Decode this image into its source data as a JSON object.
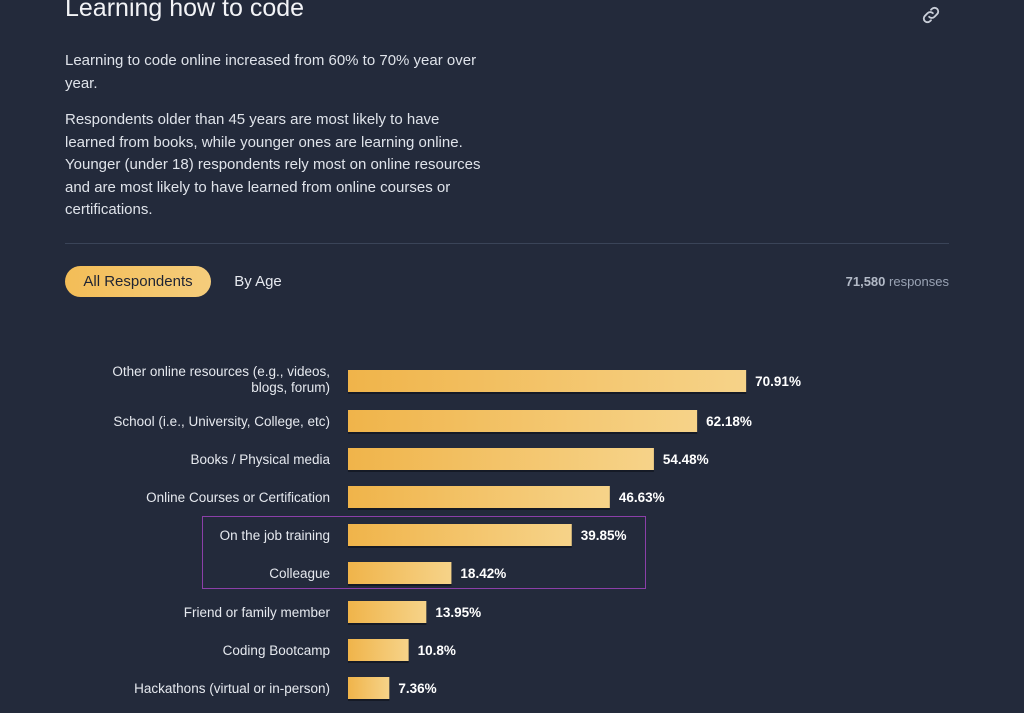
{
  "header": {
    "title": "Learning how to code",
    "link_icon": "link-icon"
  },
  "intro": {
    "paragraph1": "Learning to code online increased from 60% to 70% year over year.",
    "paragraph2": "Respondents older than 45 years are most likely to have learned from books, while younger ones are learning online. Younger (under 18) respondents rely most on online resources and are most likely to have learned from online courses or certifications."
  },
  "tabs": {
    "all_label": "All Respondents",
    "age_label": "By Age",
    "selected": "All Respondents"
  },
  "responses": {
    "count": "71,580",
    "label": "responses"
  },
  "colors": {
    "background": "#232a3b",
    "bar_start": "#f0b44a",
    "bar_end": "#f6d389",
    "highlight_border": "#8b3fa8"
  },
  "chart_data": {
    "type": "bar",
    "orientation": "horizontal",
    "categories": [
      "Other online resources (e.g., videos, blogs, forum)",
      "School (i.e., University, College, etc)",
      "Books / Physical media",
      "Online Courses or Certification",
      "On the job training",
      "Colleague",
      "Friend or family member",
      "Coding Bootcamp",
      "Hackathons (virtual or in-person)"
    ],
    "category_lines": [
      [
        "Other online resources (e.g., videos,",
        "blogs, forum)"
      ],
      [
        "School (i.e., University, College, etc)"
      ],
      [
        "Books / Physical media"
      ],
      [
        "Online Courses or Certification"
      ],
      [
        "On the job training"
      ],
      [
        "Colleague"
      ],
      [
        "Friend or family member"
      ],
      [
        "Coding Bootcamp"
      ],
      [
        "Hackathons (virtual or in-person)"
      ]
    ],
    "values": [
      70.91,
      62.18,
      54.48,
      46.63,
      39.85,
      18.42,
      13.95,
      10.8,
      7.36
    ],
    "value_labels": [
      "70.91%",
      "62.18%",
      "54.48%",
      "46.63%",
      "39.85%",
      "18.42%",
      "13.95%",
      "10.8%",
      "7.36%"
    ],
    "unit": "%",
    "xlim": [
      0,
      100
    ],
    "highlighted_categories": [
      "On the job training",
      "Colleague"
    ]
  }
}
